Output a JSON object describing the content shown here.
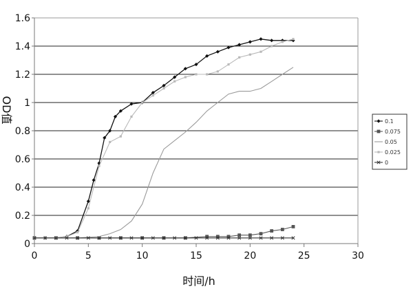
{
  "chart_data": {
    "type": "line",
    "title": "",
    "xlabel": "时间/h",
    "ylabel": "OD值",
    "xlim": [
      0,
      30
    ],
    "ylim": [
      0,
      1.6
    ],
    "xticks": [
      0,
      5,
      10,
      15,
      20,
      25,
      30
    ],
    "yticks": [
      0,
      0.2,
      0.4,
      0.6,
      0.8,
      1,
      1.2,
      1.4,
      1.6
    ],
    "ytick_labels": [
      "0",
      "0.2",
      "0.4",
      "0.6",
      "0.8",
      "1",
      "1.2",
      "1.4",
      "1.6"
    ],
    "grid": "horizontal",
    "legend_position": "right",
    "series": [
      {
        "name": "0.1",
        "color": "#111111",
        "marker": "diamond",
        "points": [
          [
            0,
            0.04
          ],
          [
            1,
            0.04
          ],
          [
            2,
            0.04
          ],
          [
            3,
            0.05
          ],
          [
            4,
            0.09
          ],
          [
            5,
            0.3
          ],
          [
            5.5,
            0.45
          ],
          [
            6,
            0.57
          ],
          [
            6.5,
            0.75
          ],
          [
            7,
            0.8
          ],
          [
            7.5,
            0.9
          ],
          [
            8,
            0.94
          ],
          [
            9,
            0.99
          ],
          [
            10,
            1.0
          ],
          [
            11,
            1.07
          ],
          [
            12,
            1.12
          ],
          [
            13,
            1.18
          ],
          [
            14,
            1.24
          ],
          [
            15,
            1.27
          ],
          [
            16,
            1.33
          ],
          [
            17,
            1.36
          ],
          [
            18,
            1.39
          ],
          [
            19,
            1.41
          ],
          [
            20,
            1.43
          ],
          [
            21,
            1.45
          ],
          [
            22,
            1.44
          ],
          [
            23,
            1.44
          ],
          [
            24,
            1.44
          ]
        ]
      },
      {
        "name": "0.075",
        "color": "#555555",
        "marker": "square",
        "points": [
          [
            0,
            0.04
          ],
          [
            2,
            0.04
          ],
          [
            4,
            0.04
          ],
          [
            6,
            0.04
          ],
          [
            8,
            0.04
          ],
          [
            10,
            0.04
          ],
          [
            12,
            0.04
          ],
          [
            14,
            0.04
          ],
          [
            16,
            0.05
          ],
          [
            17,
            0.05
          ],
          [
            18,
            0.05
          ],
          [
            19,
            0.06
          ],
          [
            20,
            0.06
          ],
          [
            21,
            0.07
          ],
          [
            22,
            0.09
          ],
          [
            23,
            0.1
          ],
          [
            24,
            0.12
          ]
        ]
      },
      {
        "name": "0.05",
        "color": "#9a9a9a",
        "marker": "none",
        "points": [
          [
            0,
            0.04
          ],
          [
            2,
            0.04
          ],
          [
            4,
            0.04
          ],
          [
            6,
            0.05
          ],
          [
            7,
            0.07
          ],
          [
            8,
            0.1
          ],
          [
            9,
            0.16
          ],
          [
            10,
            0.28
          ],
          [
            11,
            0.5
          ],
          [
            12,
            0.67
          ],
          [
            13,
            0.73
          ],
          [
            14,
            0.79
          ],
          [
            15,
            0.86
          ],
          [
            16,
            0.94
          ],
          [
            17,
            1.0
          ],
          [
            18,
            1.06
          ],
          [
            19,
            1.08
          ],
          [
            20,
            1.08
          ],
          [
            21,
            1.1
          ],
          [
            22,
            1.15
          ],
          [
            23,
            1.2
          ],
          [
            24,
            1.25
          ]
        ]
      },
      {
        "name": "0.025",
        "color": "#b9b9b9",
        "marker": "small-square",
        "points": [
          [
            0,
            0.04
          ],
          [
            1,
            0.04
          ],
          [
            2,
            0.04
          ],
          [
            3,
            0.05
          ],
          [
            4,
            0.08
          ],
          [
            5,
            0.25
          ],
          [
            6,
            0.55
          ],
          [
            7,
            0.72
          ],
          [
            8,
            0.76
          ],
          [
            9,
            0.9
          ],
          [
            10,
            1.0
          ],
          [
            11,
            1.05
          ],
          [
            12,
            1.1
          ],
          [
            13,
            1.15
          ],
          [
            14,
            1.18
          ],
          [
            15,
            1.2
          ],
          [
            16,
            1.2
          ],
          [
            17,
            1.22
          ],
          [
            18,
            1.27
          ],
          [
            19,
            1.32
          ],
          [
            20,
            1.34
          ],
          [
            21,
            1.36
          ],
          [
            22,
            1.4
          ],
          [
            23,
            1.43
          ],
          [
            24,
            1.45
          ]
        ]
      },
      {
        "name": "0",
        "color": "#333333",
        "marker": "x",
        "points": [
          [
            0,
            0.04
          ],
          [
            1,
            0.04
          ],
          [
            2,
            0.04
          ],
          [
            3,
            0.04
          ],
          [
            4,
            0.04
          ],
          [
            5,
            0.04
          ],
          [
            6,
            0.04
          ],
          [
            7,
            0.04
          ],
          [
            8,
            0.04
          ],
          [
            9,
            0.04
          ],
          [
            10,
            0.04
          ],
          [
            11,
            0.04
          ],
          [
            12,
            0.04
          ],
          [
            13,
            0.04
          ],
          [
            14,
            0.04
          ],
          [
            15,
            0.04
          ],
          [
            16,
            0.04
          ],
          [
            17,
            0.04
          ],
          [
            18,
            0.04
          ],
          [
            19,
            0.04
          ],
          [
            20,
            0.04
          ],
          [
            21,
            0.04
          ],
          [
            22,
            0.04
          ],
          [
            23,
            0.04
          ],
          [
            24,
            0.04
          ]
        ]
      }
    ]
  }
}
